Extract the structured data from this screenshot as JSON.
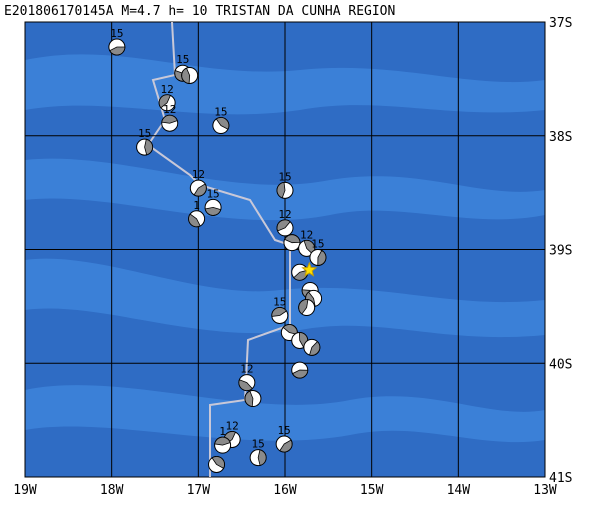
{
  "title": "E201806170145A  M=4.7  h= 10  TRISTAN DA CUNHA REGION",
  "lat_labels": [
    "37S",
    "38S",
    "39S",
    "40S",
    "41S"
  ],
  "lon_labels": [
    "19W",
    "18W",
    "17W",
    "16W",
    "15W",
    "14W",
    "13W"
  ],
  "epicenter": {
    "lon": -15.72,
    "lat": -39.18
  },
  "events": [
    {
      "label": "15",
      "lon": -17.94,
      "lat": -37.22
    },
    {
      "label": "15",
      "lon": -17.18,
      "lat": -37.45
    },
    {
      "lon": -17.1,
      "lat": -37.47
    },
    {
      "label": "12",
      "lon": -17.36,
      "lat": -37.71
    },
    {
      "label": "12",
      "lon": -17.33,
      "lat": -37.89
    },
    {
      "label": "15",
      "lon": -16.74,
      "lat": -37.91
    },
    {
      "label": "15",
      "lon": -17.62,
      "lat": -38.1
    },
    {
      "label": "12",
      "lon": -17.0,
      "lat": -38.46
    },
    {
      "label": "15",
      "lon": -16.83,
      "lat": -38.63
    },
    {
      "label": "1",
      "lon": -17.02,
      "lat": -38.73
    },
    {
      "label": "15",
      "lon": -16.0,
      "lat": -38.48
    },
    {
      "label": "12",
      "lon": -16.0,
      "lat": -38.81
    },
    {
      "lon": -15.92,
      "lat": -38.94
    },
    {
      "label": "12",
      "lon": -15.75,
      "lat": -38.99
    },
    {
      "label": "15",
      "lon": -15.62,
      "lat": -39.07
    },
    {
      "lon": -15.83,
      "lat": -39.2
    },
    {
      "lon": -15.71,
      "lat": -39.36
    },
    {
      "lon": -15.67,
      "lat": -39.43
    },
    {
      "lon": -15.75,
      "lat": -39.51
    },
    {
      "label": "15",
      "lon": -16.06,
      "lat": -39.58
    },
    {
      "lon": -15.95,
      "lat": -39.73
    },
    {
      "lon": -15.83,
      "lat": -39.8
    },
    {
      "lon": -15.69,
      "lat": -39.86
    },
    {
      "lon": -15.83,
      "lat": -40.06
    },
    {
      "label": "12",
      "lon": -16.44,
      "lat": -40.17
    },
    {
      "lon": -16.37,
      "lat": -40.31
    },
    {
      "label": "12",
      "lon": -16.61,
      "lat": -40.67
    },
    {
      "label": "1",
      "lon": -16.72,
      "lat": -40.72
    },
    {
      "lon": -16.79,
      "lat": -40.89
    },
    {
      "label": "15",
      "lon": -16.31,
      "lat": -40.83
    },
    {
      "label": "15",
      "lon": -16.01,
      "lat": -40.71
    }
  ]
}
